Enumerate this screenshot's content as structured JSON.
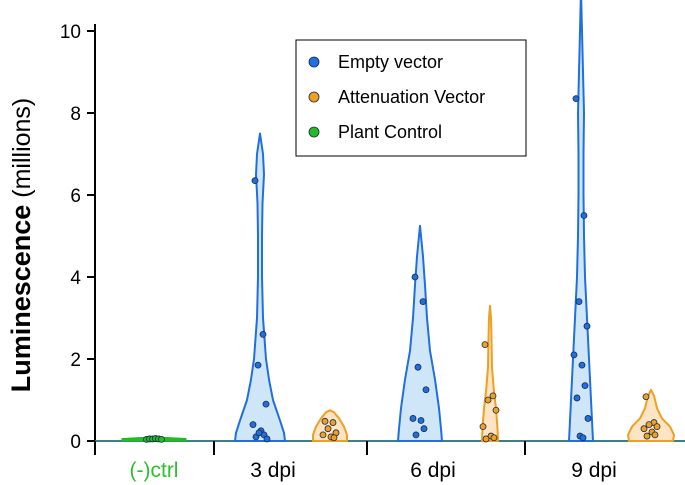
{
  "chart_data": {
    "type": "violin",
    "title": "",
    "ylabel_bold": "Luminescence",
    "ylabel_unit": " (millions)",
    "ylim": [
      0,
      10.5
    ],
    "yticks": [
      0,
      2,
      4,
      6,
      8,
      10
    ],
    "categories": [
      {
        "label": "(-)ctrl",
        "color": "#2fbf2f"
      },
      {
        "label": "3 dpi",
        "color": "#000000"
      },
      {
        "label": "6 dpi",
        "color": "#000000"
      },
      {
        "label": "9 dpi",
        "color": "#000000"
      }
    ],
    "legend": {
      "position": "top-center",
      "entries": [
        {
          "name": "Empty vector",
          "color": "#1f6fe0"
        },
        {
          "name": "Attenuation Vector",
          "color": "#f0a020"
        },
        {
          "name": "Plant Control",
          "color": "#22bb22"
        }
      ]
    },
    "series": [
      {
        "name": "Plant Control",
        "color": "#22bb22",
        "groups": [
          {
            "category": "(-)ctrl",
            "points": [
              0.04,
              0.05,
              0.05,
              0.06,
              0.05,
              0.04
            ]
          }
        ]
      },
      {
        "name": "Empty vector",
        "color": "#1f6fe0",
        "groups": [
          {
            "category": "3 dpi",
            "points": [
              6.35,
              2.6,
              1.85,
              0.9,
              0.4,
              0.25,
              0.15,
              0.1,
              0.05,
              0.2
            ]
          },
          {
            "category": "6 dpi",
            "points": [
              4.0,
              3.4,
              1.8,
              1.25,
              0.55,
              0.5,
              0.3,
              0.15
            ]
          },
          {
            "category": "9 dpi",
            "points": [
              8.35,
              5.5,
              3.4,
              2.8,
              2.1,
              1.85,
              1.35,
              1.05,
              0.55,
              0.12,
              0.08
            ]
          }
        ]
      },
      {
        "name": "Attenuation Vector",
        "color": "#f0a020",
        "groups": [
          {
            "category": "3 dpi",
            "points": [
              0.48,
              0.45,
              0.3,
              0.2,
              0.15,
              0.1,
              0.08
            ]
          },
          {
            "category": "6 dpi",
            "points": [
              2.35,
              1.1,
              1.0,
              0.75,
              0.35,
              0.12,
              0.08,
              0.05
            ]
          },
          {
            "category": "9 dpi",
            "points": [
              1.08,
              0.45,
              0.4,
              0.35,
              0.3,
              0.22,
              0.15,
              0.12
            ]
          }
        ]
      }
    ],
    "violins": [
      {
        "series": "Plant Control",
        "category": "(-)ctrl",
        "offset": 0,
        "profile": [
          [
            0,
            32
          ],
          [
            0.06,
            32
          ],
          [
            0.1,
            0
          ]
        ],
        "max": 0.1
      },
      {
        "series": "Empty vector",
        "category": "3 dpi",
        "offset": -1,
        "profile": [
          [
            0,
            25
          ],
          [
            0.2,
            24
          ],
          [
            0.5,
            20
          ],
          [
            1.0,
            13
          ],
          [
            1.5,
            9
          ],
          [
            2.0,
            6
          ],
          [
            3.0,
            3
          ],
          [
            4.0,
            2
          ],
          [
            5.0,
            2
          ],
          [
            5.8,
            2.5
          ],
          [
            6.5,
            4
          ],
          [
            7.0,
            3
          ],
          [
            7.5,
            0
          ]
        ],
        "max": 7.5
      },
      {
        "series": "Empty vector",
        "category": "6 dpi",
        "offset": -1,
        "profile": [
          [
            0,
            22
          ],
          [
            0.3,
            21
          ],
          [
            0.8,
            19
          ],
          [
            1.5,
            15
          ],
          [
            2.2,
            10
          ],
          [
            3.0,
            7
          ],
          [
            3.8,
            5
          ],
          [
            4.5,
            3
          ],
          [
            5.25,
            0
          ]
        ],
        "max": 5.25
      },
      {
        "series": "Empty vector",
        "category": "9 dpi",
        "offset": -1,
        "profile": [
          [
            0,
            12
          ],
          [
            0.5,
            11
          ],
          [
            1.0,
            10
          ],
          [
            2.0,
            8
          ],
          [
            3.0,
            6
          ],
          [
            4.0,
            4
          ],
          [
            5.0,
            3
          ],
          [
            6.0,
            2.5
          ],
          [
            7.0,
            2.5
          ],
          [
            8.0,
            3
          ],
          [
            9.0,
            2
          ],
          [
            10.0,
            1
          ],
          [
            11.0,
            0
          ]
        ],
        "max": 11.0
      },
      {
        "series": "Attenuation Vector",
        "category": "3 dpi",
        "offset": 1,
        "profile": [
          [
            0,
            17
          ],
          [
            0.15,
            17
          ],
          [
            0.35,
            14
          ],
          [
            0.55,
            9
          ],
          [
            0.7,
            4
          ],
          [
            0.75,
            0
          ]
        ],
        "max": 0.75
      },
      {
        "series": "Attenuation Vector",
        "category": "6 dpi",
        "offset": 1,
        "profile": [
          [
            0,
            8
          ],
          [
            0.3,
            7.5
          ],
          [
            0.8,
            6
          ],
          [
            1.2,
            4
          ],
          [
            1.8,
            2
          ],
          [
            2.5,
            1.5
          ],
          [
            3.0,
            1
          ],
          [
            3.3,
            0
          ]
        ],
        "max": 3.3
      },
      {
        "series": "Attenuation Vector",
        "category": "9 dpi",
        "offset": 1,
        "profile": [
          [
            0,
            22
          ],
          [
            0.15,
            23
          ],
          [
            0.35,
            19
          ],
          [
            0.55,
            11
          ],
          [
            0.8,
            6
          ],
          [
            1.1,
            3
          ],
          [
            1.25,
            0
          ]
        ],
        "max": 1.25
      }
    ]
  }
}
